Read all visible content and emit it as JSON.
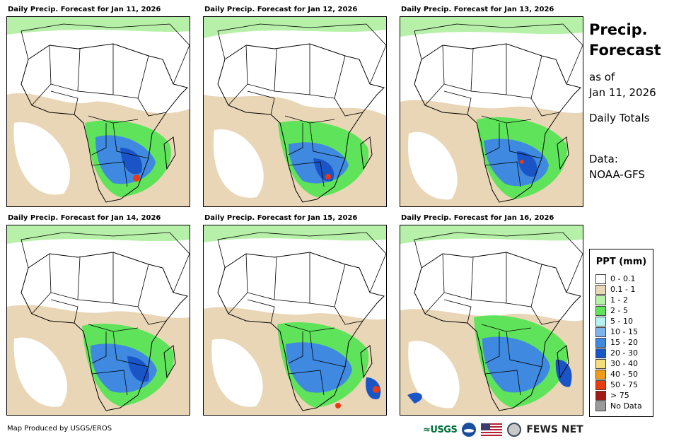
{
  "panels": [
    {
      "title": "Daily Precip. Forecast for Jan 11, 2026"
    },
    {
      "title": "Daily Precip. Forecast for Jan 12, 2026"
    },
    {
      "title": "Daily Precip. Forecast for Jan 13, 2026"
    },
    {
      "title": "Daily Precip. Forecast for Jan 14, 2026"
    },
    {
      "title": "Daily Precip. Forecast for Jan 15, 2026"
    },
    {
      "title": "Daily Precip. Forecast for Jan 16, 2026"
    }
  ],
  "side": {
    "title_line1": "Precip.",
    "title_line2": "Forecast",
    "asof_line1": "as of",
    "asof_line2": "Jan 11, 2026",
    "totals": "Daily Totals",
    "data_line1": "Data:",
    "data_line2": "NOAA-GFS"
  },
  "legend": {
    "title": "PPT (mm)",
    "items": [
      {
        "label": "0 - 0.1",
        "color": "#ffffff"
      },
      {
        "label": "0.1 - 1",
        "color": "#e9d6b6"
      },
      {
        "label": "1 - 2",
        "color": "#b7f0a8"
      },
      {
        "label": "2 - 5",
        "color": "#5fe35a"
      },
      {
        "label": "5 - 10",
        "color": "#b6f2f2"
      },
      {
        "label": "10 - 15",
        "color": "#7fb3ec"
      },
      {
        "label": "15 - 20",
        "color": "#3f8ae0"
      },
      {
        "label": "20 - 30",
        "color": "#1a55c8"
      },
      {
        "label": "30 - 40",
        "color": "#f5de7a"
      },
      {
        "label": "40 - 50",
        "color": "#f29a1a"
      },
      {
        "label": "50 - 75",
        "color": "#ea3a10"
      },
      {
        "label": "> 75",
        "color": "#a01818"
      },
      {
        "label": "No Data",
        "color": "#9a9a9a"
      }
    ]
  },
  "footer": {
    "credit": "Map Produced by USGS/EROS",
    "usgs": "≈USGS",
    "fews": "FEWS NET"
  }
}
